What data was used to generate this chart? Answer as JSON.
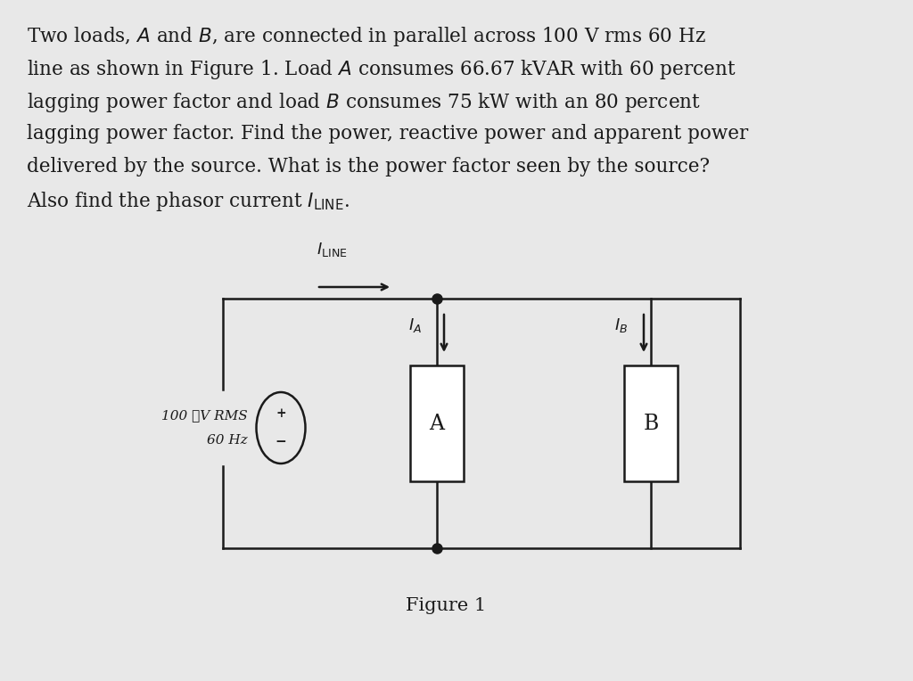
{
  "bg_color": "#e8e8e8",
  "text_area_color": "#f0efed",
  "line_color": "#1a1a1a",
  "figure_label": "Figure 1",
  "source_label_line1": "100 ★V RMS",
  "source_label_line2": "60 Hz",
  "load_a_label": "A",
  "load_b_label": "B",
  "font_size_paragraph": 15.5,
  "font_size_labels": 13,
  "font_size_figure": 15,
  "font_size_circuit": 13
}
